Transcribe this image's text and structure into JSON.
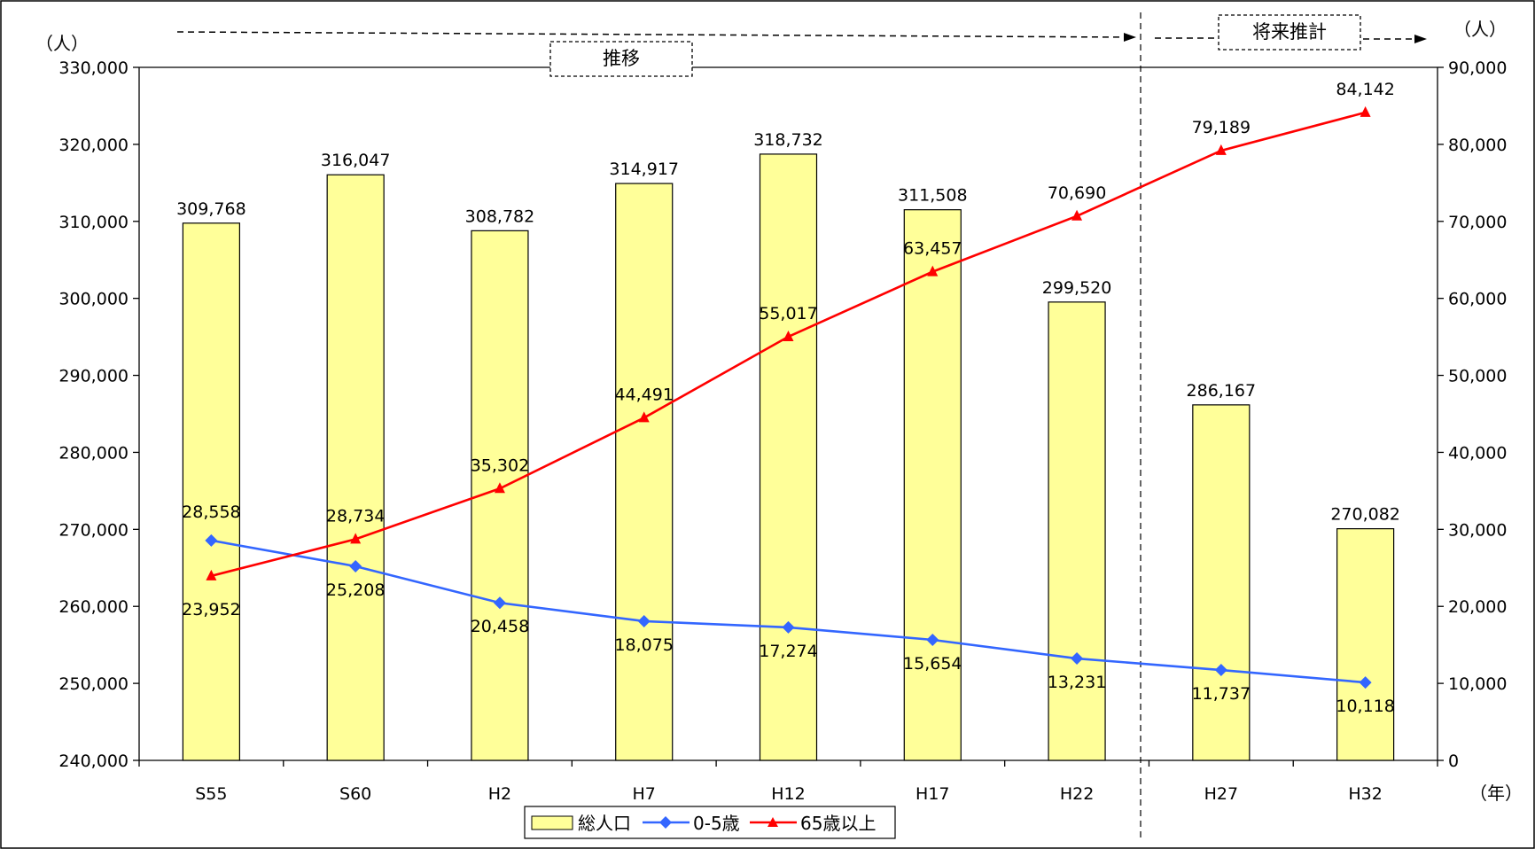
{
  "chart_data": {
    "type": "bar",
    "categories": [
      "S55",
      "S60",
      "H2",
      "H7",
      "H12",
      "H17",
      "H22",
      "H27",
      "H32"
    ],
    "series": [
      {
        "name": "総人口",
        "type": "bar",
        "axis": "left",
        "color": "#FFFF99",
        "values": [
          309768,
          316047,
          308782,
          314917,
          318732,
          311508,
          299520,
          286167,
          270082
        ],
        "labels": [
          "309,768",
          "316,047",
          "308,782",
          "314,917",
          "318,732",
          "311,508",
          "299,520",
          "286,167",
          "270,082"
        ]
      },
      {
        "name": "0-5歳",
        "type": "line",
        "axis": "right",
        "color": "#3366FF",
        "marker": "diamond",
        "values": [
          28558,
          25208,
          20458,
          18075,
          17274,
          15654,
          13231,
          11737,
          10118
        ],
        "labels": [
          "28,558",
          "25,208",
          "20,458",
          "18,075",
          "17,274",
          "15,654",
          "13,231",
          "11,737",
          "10,118"
        ]
      },
      {
        "name": "65歳以上",
        "type": "line",
        "axis": "right",
        "color": "#FF0000",
        "marker": "triangle",
        "values": [
          23952,
          28734,
          35302,
          44491,
          55017,
          63457,
          70690,
          79189,
          84142
        ],
        "labels": [
          "23,952",
          "28,734",
          "35,302",
          "44,491",
          "55,017",
          "63,457",
          "70,690",
          "79,189",
          "84,142"
        ]
      }
    ],
    "y_left": {
      "unit": "（人）",
      "ylim": [
        240000,
        330000
      ],
      "ticks": [
        "240,000",
        "250,000",
        "260,000",
        "270,000",
        "280,000",
        "290,000",
        "300,000",
        "310,000",
        "320,000",
        "330,000"
      ]
    },
    "y_right": {
      "unit": "（人）",
      "ylim": [
        0,
        90000
      ],
      "ticks": [
        "0",
        "10,000",
        "20,000",
        "30,000",
        "40,000",
        "50,000",
        "60,000",
        "70,000",
        "80,000",
        "90,000"
      ]
    },
    "x_unit": "（年）",
    "annotations": {
      "history": "推移",
      "projection": "将来推計"
    },
    "grid": false,
    "legend_position": "bottom"
  }
}
